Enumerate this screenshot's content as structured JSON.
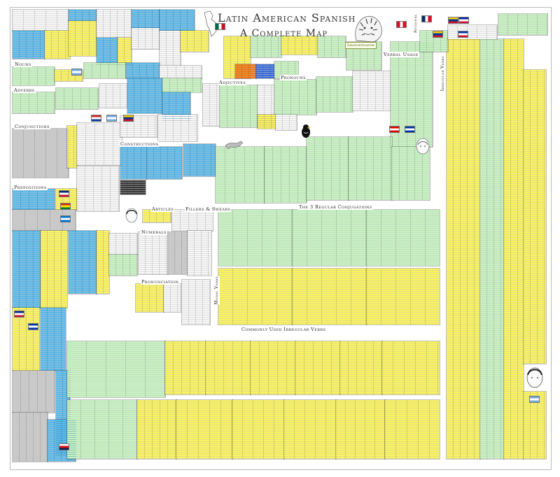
{
  "poster": {
    "title_line1": "Latin American Spanish",
    "title_line2": "A Complete Map",
    "logo_text": "Linguisticator"
  },
  "sections": {
    "nouns": "Nouns",
    "adverbs": "Adverbs",
    "conjunctions": "Conjunctions",
    "prepositions": "Prepositions",
    "constructions": "Constructions",
    "adjectives": "Adjectives",
    "pronouns": "Pronouns",
    "verbal_usage": "Verbal Usage",
    "articles": "Articles",
    "fillers": "Fillers & Swears",
    "numerals": "Numerals",
    "pronunciation": "Pronunciation",
    "regular_conj": "The 3 Regular Conjugations",
    "irregular_verbs": "Commonly Used Irregular Verbs",
    "irregular_side": "Irregular Verbs",
    "modal_verbs": "Modal Verbs",
    "regional": "Regional"
  },
  "colors": {
    "yellow": "#fbf35a",
    "green": "#c6f2c0",
    "blue": "#5ab8ea",
    "gray": "#c9c9c9",
    "white_cell": "#f7f7f7",
    "text": "#333333"
  },
  "icons": [
    "tiger-illustration",
    "bird-illustration",
    "fox-illustration",
    "portrait-illustration",
    "map-outline-icon",
    "flag-icons"
  ]
}
